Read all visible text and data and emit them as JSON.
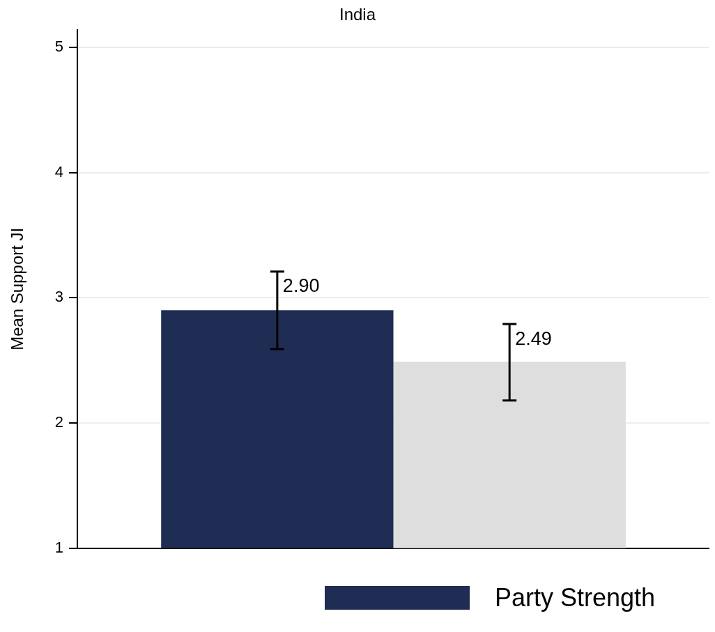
{
  "chart_data": {
    "type": "bar",
    "title": "India",
    "ylabel": "Mean Support JI",
    "categories": [
      null
    ],
    "series": [
      {
        "name": "Party Strength",
        "color": "#1f2d54",
        "values": [
          2.9
        ],
        "errors": [
          [
            2.59,
            3.21
          ]
        ],
        "value_labels": [
          "2.90"
        ]
      },
      {
        "color": "#dedede",
        "values": [
          2.49
        ],
        "errors": [
          [
            2.18,
            2.79
          ]
        ],
        "value_labels": [
          "2.49"
        ]
      }
    ],
    "ylim": [
      1,
      5.14
    ],
    "yticks": [
      1,
      2,
      3,
      4,
      5
    ],
    "grid": "y",
    "legend": "bottom"
  }
}
